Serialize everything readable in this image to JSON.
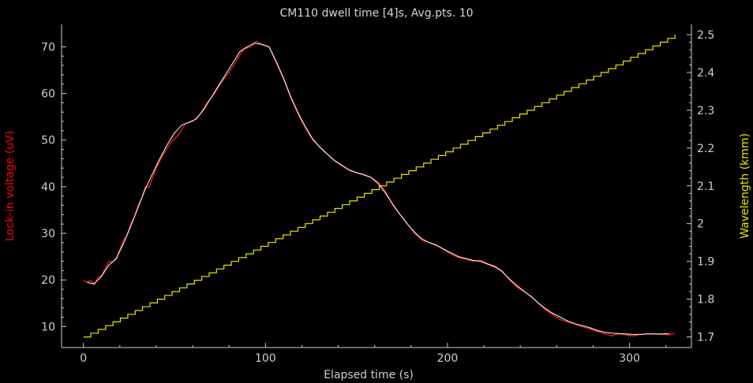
{
  "chart_data": {
    "type": "line",
    "title": "CM110 dwell time [4]s, Avg.pts. 10",
    "xlabel": "Elapsed time (s)",
    "ylabel_left": "Lock-in voltage (uV)",
    "ylabel_right": "Wavelength (kmm)",
    "xlim": [
      -12,
      334
    ],
    "ylim_left": [
      5.5,
      74.8
    ],
    "ylim_right": [
      1.672,
      2.527
    ],
    "x_ticks": [
      0,
      100,
      200,
      300
    ],
    "y_left_ticks": [
      10,
      20,
      30,
      40,
      50,
      60,
      70
    ],
    "y_right_ticks": [
      "1.7",
      "1.8",
      "1.9",
      "2",
      "2.1",
      "2.2",
      "2.3",
      "2.4",
      "2.5"
    ],
    "grid": false,
    "colors": {
      "background": "#000000",
      "axes": "#cfcfcf",
      "raw": "#ff1a1a",
      "smoothed": "#ffffff",
      "wavelength": "#e6e600",
      "left_label": "#ff0000",
      "right_label": "#e6e600"
    },
    "series": [
      {
        "axis": "left",
        "style": "raw",
        "x": [
          0,
          2,
          4,
          6,
          8,
          10,
          12,
          14,
          16,
          18,
          20,
          22,
          24,
          26,
          28,
          30,
          32,
          34,
          36,
          38,
          40,
          44,
          48,
          52,
          56,
          60,
          64,
          68,
          72,
          76,
          80,
          84,
          88,
          92,
          95,
          98,
          102,
          106,
          110,
          114,
          118,
          122,
          126,
          130,
          134,
          138,
          142,
          146,
          150,
          154,
          158,
          162,
          166,
          170,
          174,
          178,
          182,
          186,
          190,
          194,
          198,
          202,
          206,
          210,
          214,
          218,
          222,
          226,
          230,
          234,
          238,
          242,
          246,
          250,
          254,
          258,
          262,
          266,
          270,
          274,
          278,
          282,
          286,
          290,
          294,
          298,
          302,
          306,
          310,
          314,
          318,
          322,
          325
        ],
        "values": [
          19.8,
          19.6,
          19.9,
          18.9,
          20.5,
          21.0,
          22.5,
          24.0,
          23.8,
          24.5,
          26.5,
          28.5,
          29.5,
          32.0,
          33.5,
          36.0,
          37.5,
          40.0,
          39.8,
          42.0,
          44.0,
          47.0,
          49.5,
          51.0,
          53.5,
          54.0,
          55.5,
          58.0,
          60.0,
          62.5,
          64.5,
          67.0,
          69.5,
          70.0,
          71.2,
          70.5,
          70.0,
          66.5,
          63.0,
          59.0,
          55.5,
          52.5,
          50.0,
          48.5,
          47.0,
          45.5,
          44.5,
          43.5,
          43.0,
          42.5,
          42.0,
          41.0,
          39.0,
          36.0,
          34.0,
          32.0,
          30.0,
          28.5,
          28.0,
          27.5,
          26.5,
          25.5,
          24.8,
          24.5,
          24.0,
          24.2,
          23.5,
          23.0,
          22.0,
          20.0,
          18.5,
          17.5,
          16.5,
          15.0,
          13.5,
          12.5,
          11.5,
          11.0,
          10.5,
          10.0,
          9.5,
          9.0,
          8.5,
          8.0,
          8.5,
          8.2,
          8.0,
          8.3,
          8.5,
          8.4,
          8.3,
          8.2,
          8.6
        ]
      },
      {
        "axis": "left",
        "style": "smoothed",
        "x": [
          2,
          4,
          6,
          10,
          14,
          18,
          22,
          26,
          30,
          34,
          38,
          42,
          46,
          50,
          54,
          58,
          62,
          66,
          70,
          74,
          78,
          82,
          86,
          90,
          94,
          98,
          102,
          106,
          110,
          114,
          118,
          122,
          126,
          130,
          134,
          138,
          142,
          146,
          150,
          154,
          158,
          162,
          166,
          170,
          174,
          178,
          182,
          186,
          190,
          194,
          198,
          202,
          206,
          210,
          214,
          218,
          222,
          226,
          230,
          234,
          238,
          242,
          246,
          250,
          254,
          258,
          262,
          266,
          270,
          274,
          278,
          282,
          286,
          290,
          294,
          298,
          302,
          306,
          310,
          314,
          318,
          322
        ],
        "values": [
          19.5,
          19.3,
          19.2,
          20.8,
          23.2,
          24.6,
          27.8,
          31.5,
          35.5,
          39.5,
          42.8,
          46.0,
          49.0,
          51.5,
          53.2,
          53.8,
          54.5,
          56.5,
          59.0,
          61.5,
          64.0,
          66.5,
          69.0,
          70.0,
          70.8,
          70.5,
          70.0,
          66.8,
          63.2,
          59.2,
          55.8,
          52.8,
          50.2,
          48.4,
          47.0,
          45.6,
          44.6,
          43.6,
          43.0,
          42.6,
          42.0,
          40.6,
          38.6,
          36.2,
          34.0,
          32.0,
          30.2,
          28.8,
          28.0,
          27.4,
          26.6,
          25.8,
          25.0,
          24.6,
          24.2,
          24.0,
          23.4,
          22.8,
          21.8,
          20.2,
          18.8,
          17.6,
          16.4,
          15.0,
          13.8,
          12.8,
          12.0,
          11.2,
          10.6,
          10.2,
          9.8,
          9.2,
          8.8,
          8.6,
          8.5,
          8.4,
          8.3,
          8.3,
          8.4,
          8.4,
          8.4,
          8.5
        ]
      },
      {
        "axis": "right",
        "style": "steps",
        "x_start": 0,
        "x_end": 325,
        "y_start": 1.7,
        "y_end": 2.5,
        "step_count": 80
      }
    ]
  }
}
